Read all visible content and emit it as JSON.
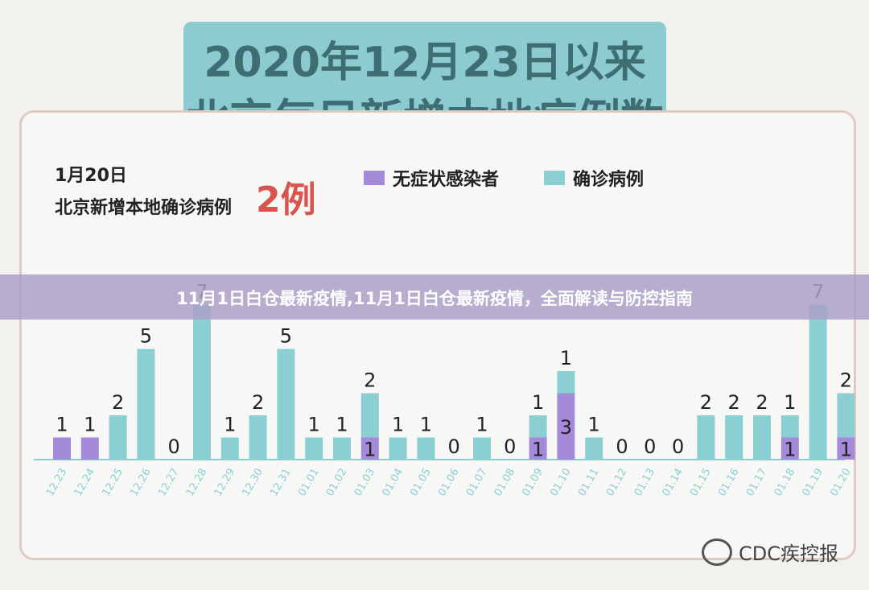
{
  "title": {
    "line1": "2020年12月23日以来",
    "line2": "北京每日新增本地病例数"
  },
  "info": {
    "date": "1月20日",
    "subtitle": "北京新增本地确诊病例",
    "highlight": "2例"
  },
  "banner": {
    "text": "11月1日白仓最新疫情,11月1日白仓最新疫情，全面解读与防控指南"
  },
  "watermark": {
    "text": "CDC疾控报"
  },
  "colors": {
    "asymptomatic": "#a48ad8",
    "confirmed": "#8ccfd3",
    "axis": "#8ccfd3"
  },
  "chart_data": {
    "type": "bar",
    "stacked": true,
    "legend": [
      "无症状感染者",
      "确诊病例"
    ],
    "legend_placement": "top",
    "categories": [
      "12.23",
      "12.24",
      "12.25",
      "12.26",
      "12.27",
      "12.28",
      "12.29",
      "12.30",
      "12.31",
      "01.01",
      "01.02",
      "01.03",
      "01.04",
      "01.05",
      "01.06",
      "01.07",
      "01.08",
      "01.09",
      "01.10",
      "01.11",
      "01.12",
      "01.13",
      "01.14",
      "01.15",
      "01.16",
      "01.17",
      "01.18",
      "01.19",
      "01.20"
    ],
    "series": [
      {
        "name": "无症状感染者",
        "values": [
          1,
          1,
          0,
          0,
          0,
          0,
          0,
          0,
          0,
          0,
          0,
          1,
          0,
          0,
          0,
          0,
          0,
          1,
          3,
          0,
          0,
          0,
          0,
          0,
          0,
          0,
          1,
          0,
          1
        ]
      },
      {
        "name": "确诊病例",
        "values": [
          0,
          0,
          2,
          5,
          0,
          7,
          1,
          2,
          5,
          1,
          1,
          2,
          1,
          1,
          0,
          1,
          0,
          1,
          1,
          1,
          0,
          0,
          0,
          2,
          2,
          2,
          1,
          7,
          2
        ]
      }
    ],
    "grid": false
  }
}
